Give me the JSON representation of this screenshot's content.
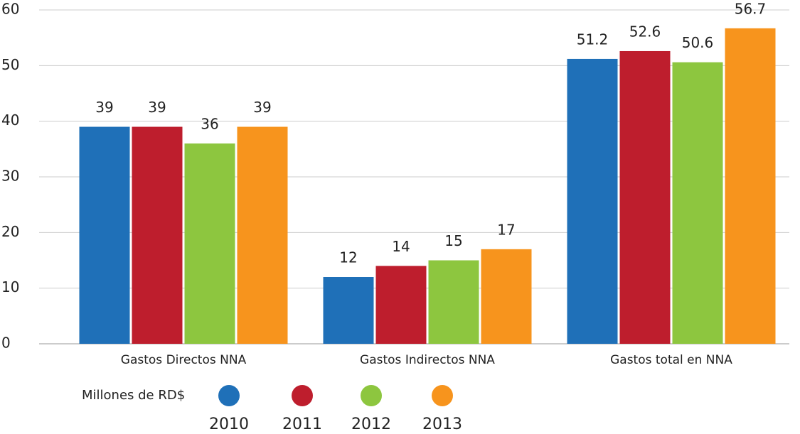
{
  "chart_data": {
    "type": "bar",
    "categories": [
      "Gastos Directos NNA",
      "Gastos Indirectos NNA",
      "Gastos total en NNA"
    ],
    "series": [
      {
        "name": "2010",
        "color": "#1f70b8",
        "values": [
          39,
          12,
          51.2
        ]
      },
      {
        "name": "2011",
        "color": "#be1e2d",
        "values": [
          39,
          14,
          52.6
        ]
      },
      {
        "name": "2012",
        "color": "#8dc63f",
        "values": [
          36,
          15,
          50.6
        ]
      },
      {
        "name": "2013",
        "color": "#f7941d",
        "values": [
          39,
          17,
          56.7
        ]
      }
    ],
    "unit_label": "Millones de RD$",
    "ylim": [
      0,
      60
    ],
    "yticks": [
      0,
      10,
      20,
      30,
      40,
      50,
      60
    ],
    "grid": true,
    "legend": "bottom"
  }
}
